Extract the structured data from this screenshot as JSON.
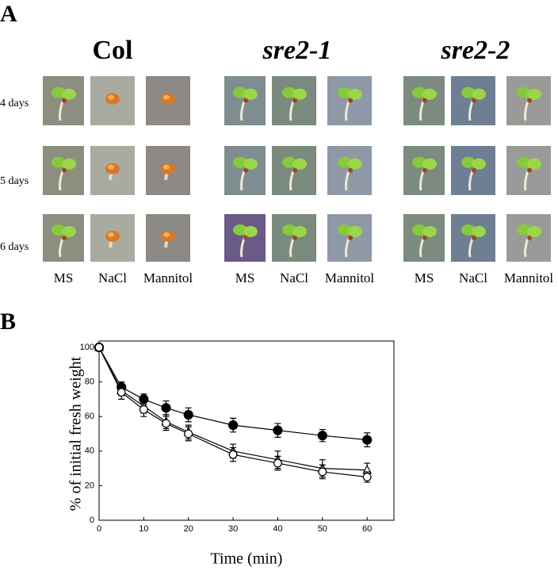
{
  "panel_a": {
    "label": "A",
    "genotypes": [
      "Col",
      "sre2-1",
      "sre2-2"
    ],
    "rows": [
      "4 days",
      "5 days",
      "6 days"
    ],
    "columns": [
      "MS",
      "NaCl",
      "Mannitol",
      "MS",
      "NaCl",
      "Mannitol",
      "MS",
      "NaCl",
      "Mannitol"
    ]
  },
  "panel_b": {
    "label": "B"
  },
  "chart_data": {
    "type": "line",
    "xlabel": "Time (min)",
    "ylabel": "% of initial fresh weight",
    "x": [
      0,
      5,
      10,
      15,
      20,
      30,
      40,
      50,
      60
    ],
    "xlim": [
      0,
      66
    ],
    "ylim": [
      0,
      100
    ],
    "xticks": [
      0,
      10,
      20,
      30,
      40,
      50,
      60
    ],
    "yticks": [
      0,
      20,
      40,
      60,
      80,
      100
    ],
    "series": [
      {
        "marker": "circle",
        "filled": true,
        "color": "#000000",
        "values": [
          100,
          77,
          70,
          65,
          61,
          55,
          52,
          49,
          46.5
        ],
        "errors": [
          1,
          3,
          3,
          4,
          4,
          4,
          4,
          3.5,
          4
        ]
      },
      {
        "marker": "triangle",
        "filled": false,
        "color": "#000000",
        "values": [
          100,
          75,
          66,
          57,
          51,
          40,
          35,
          30,
          29
        ],
        "errors": [
          1,
          3,
          4,
          4,
          4,
          4,
          5,
          5,
          4
        ]
      },
      {
        "marker": "circle",
        "filled": false,
        "color": "#000000",
        "values": [
          100,
          74,
          64,
          56,
          50,
          38,
          33,
          28,
          25
        ],
        "errors": [
          1,
          4,
          4,
          4,
          4,
          4,
          4,
          4,
          3
        ]
      }
    ]
  }
}
